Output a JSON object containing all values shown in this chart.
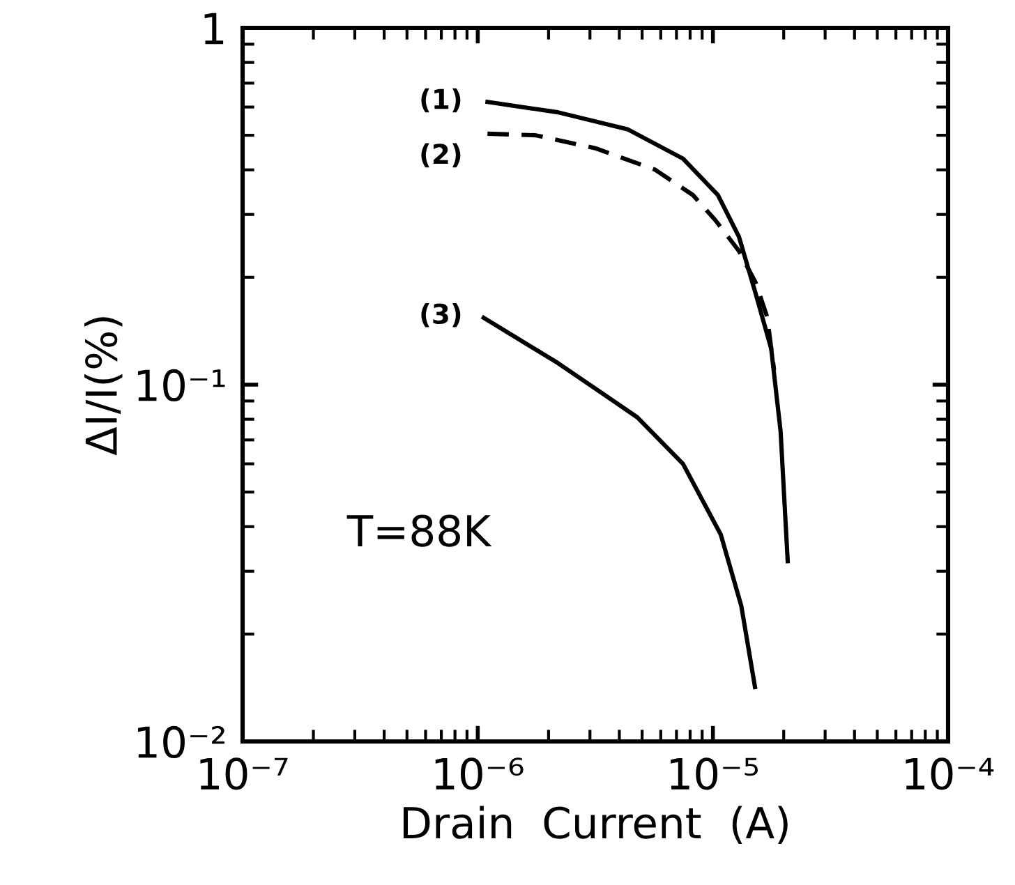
{
  "chart_data": {
    "type": "line",
    "xlabel": "Drain  Current  (A)",
    "ylabel": "ΔI/I(%)",
    "log": "xy",
    "grid": false,
    "legend": false,
    "xlim": [
      1e-07,
      0.0001
    ],
    "ylim": [
      0.01,
      1
    ],
    "xticks": [
      {
        "value": 1e-07,
        "label": "10⁻⁷"
      },
      {
        "value": 1e-06,
        "label": "10⁻⁶"
      },
      {
        "value": 1e-05,
        "label": "10⁻⁵"
      },
      {
        "value": 0.0001,
        "label": "10⁻⁴"
      }
    ],
    "yticks": [
      {
        "value": 0.01,
        "label": "10⁻²"
      },
      {
        "value": 0.1,
        "label": "10⁻¹"
      },
      1
    ],
    "annotations": [
      "(1)",
      "(2)",
      "(3)",
      "T=88K"
    ],
    "series": [
      {
        "color": "#000000",
        "line_style": "solid",
        "x": [
          1.1e-06,
          2.19e-06,
          4.33e-06,
          7.46e-06,
          1.05e-05,
          1.29e-05,
          1.52e-05,
          1.77e-05,
          1.94e-05,
          2.08e-05
        ],
        "values": [
          0.62,
          0.58,
          0.52,
          0.43,
          0.34,
          0.26,
          0.18,
          0.126,
          0.074,
          0.032
        ]
      },
      {
        "color": "#000000",
        "line_style": "dashed",
        "x": [
          1.1e-06,
          1.76e-06,
          3.16e-06,
          5.69e-06,
          8.22e-06,
          1.02e-05,
          1.29e-05,
          1.52e-05,
          1.7e-05,
          1.82e-05
        ],
        "values": [
          0.505,
          0.5,
          0.46,
          0.4,
          0.34,
          0.29,
          0.237,
          0.193,
          0.155,
          0.11
        ]
      },
      {
        "color": "#000000",
        "line_style": "solid",
        "x": [
          1.06e-06,
          2.19e-06,
          3.43e-06,
          4.77e-06,
          7.46e-06,
          1.08e-05,
          1.32e-05,
          1.51e-05
        ],
        "values": [
          0.154,
          0.115,
          0.094,
          0.081,
          0.06,
          0.038,
          0.024,
          0.0142
        ]
      }
    ]
  }
}
